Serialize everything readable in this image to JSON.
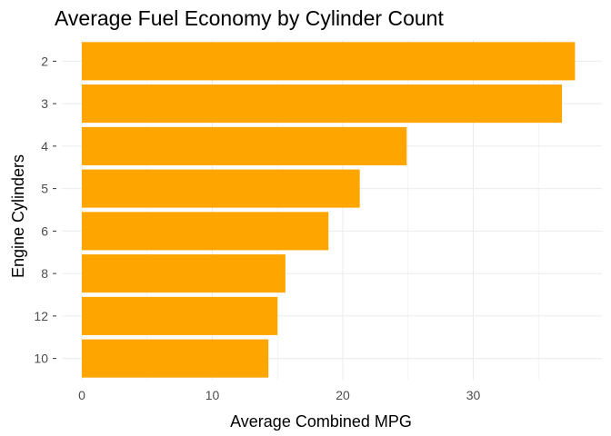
{
  "chart_data": {
    "type": "bar",
    "orientation": "horizontal",
    "title": "Average Fuel Economy by Cylinder Count",
    "xlabel": "Average Combined MPG",
    "ylabel": "Engine Cylinders",
    "categories": [
      "2",
      "3",
      "4",
      "5",
      "6",
      "8",
      "12",
      "10"
    ],
    "values": [
      37.8,
      36.8,
      24.9,
      21.3,
      18.9,
      15.6,
      15.0,
      14.3
    ],
    "xlim": [
      0,
      40
    ],
    "xticks": [
      0,
      10,
      20,
      30
    ],
    "xtick_labels": [
      "0",
      "10",
      "20",
      "30"
    ],
    "bar_color": "#FFA500",
    "grid": true,
    "legend": "none"
  }
}
